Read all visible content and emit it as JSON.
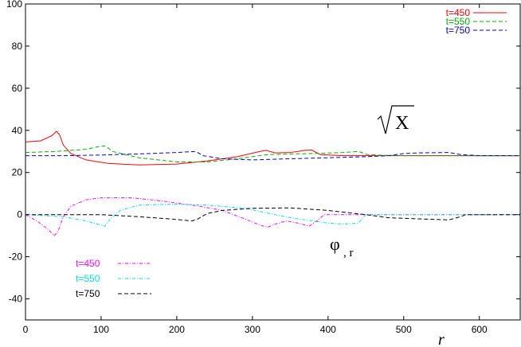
{
  "chart_data": {
    "type": "line",
    "xlabel": "r",
    "ylabel": "",
    "xlim": [
      0,
      654
    ],
    "ylim": [
      -50,
      100
    ],
    "xticks": [
      0,
      100,
      200,
      300,
      400,
      500,
      600
    ],
    "yticks": [
      -40,
      -20,
      0,
      20,
      40,
      60,
      80,
      100
    ],
    "grid": false,
    "annotations": {
      "sqrt_x": "X",
      "phi": "φ",
      "phi_sub": ", r"
    },
    "legends": [
      {
        "group": "sqrtX",
        "position": "top-right",
        "entries": [
          {
            "label": "t=450",
            "color": "#ff0000",
            "dash": "solid"
          },
          {
            "label": "t=550",
            "color": "#00b000",
            "dash": "dash"
          },
          {
            "label": "t=750",
            "color": "#0000d0",
            "dash": "dash"
          }
        ]
      },
      {
        "group": "phi",
        "position": "bottom-left",
        "entries": [
          {
            "label": "t=450",
            "color": "#ff00ff",
            "dash": "dashdot"
          },
          {
            "label": "t=550",
            "color": "#00e0e0",
            "dash": "dashdot"
          },
          {
            "label": "t=750",
            "color": "#000000",
            "dash": "dash"
          }
        ]
      }
    ],
    "series": [
      {
        "name": "t=450",
        "group": "sqrtX",
        "color": "#ff0000",
        "dash": "solid",
        "points": [
          [
            0,
            34.5
          ],
          [
            20,
            35
          ],
          [
            35,
            37.5
          ],
          [
            41,
            39.5
          ],
          [
            45,
            38
          ],
          [
            50,
            33
          ],
          [
            60,
            29
          ],
          [
            80,
            26
          ],
          [
            110,
            24.3
          ],
          [
            150,
            23.6
          ],
          [
            200,
            24
          ],
          [
            240,
            25.5
          ],
          [
            280,
            27.5
          ],
          [
            310,
            30
          ],
          [
            318,
            30.5
          ],
          [
            330,
            29.3
          ],
          [
            350,
            29.5
          ],
          [
            370,
            30.5
          ],
          [
            378,
            30.7
          ],
          [
            390,
            28.5
          ],
          [
            420,
            28
          ],
          [
            480,
            28
          ],
          [
            560,
            28
          ],
          [
            654,
            28
          ]
        ]
      },
      {
        "name": "t=550",
        "group": "sqrtX",
        "color": "#00b000",
        "dash": "dash",
        "points": [
          [
            0,
            29.5
          ],
          [
            40,
            30
          ],
          [
            80,
            31
          ],
          [
            100,
            32.5
          ],
          [
            106,
            32.5
          ],
          [
            115,
            30
          ],
          [
            150,
            27
          ],
          [
            200,
            25
          ],
          [
            240,
            25
          ],
          [
            280,
            26.5
          ],
          [
            320,
            28.5
          ],
          [
            380,
            29
          ],
          [
            420,
            29.5
          ],
          [
            440,
            30
          ],
          [
            452,
            28.5
          ],
          [
            470,
            28.2
          ],
          [
            500,
            28
          ],
          [
            560,
            28
          ],
          [
            654,
            28
          ]
        ]
      },
      {
        "name": "t=750",
        "group": "sqrtX",
        "color": "#0000d0",
        "dash": "dash",
        "points": [
          [
            0,
            28
          ],
          [
            50,
            28
          ],
          [
            100,
            28.3
          ],
          [
            150,
            28.8
          ],
          [
            200,
            29.5
          ],
          [
            225,
            30
          ],
          [
            235,
            28
          ],
          [
            260,
            26.5
          ],
          [
            300,
            26
          ],
          [
            350,
            26.5
          ],
          [
            400,
            27
          ],
          [
            450,
            27.5
          ],
          [
            480,
            28
          ],
          [
            500,
            29
          ],
          [
            520,
            29.3
          ],
          [
            560,
            29.5
          ],
          [
            575,
            28.5
          ],
          [
            600,
            28
          ],
          [
            654,
            28
          ]
        ]
      },
      {
        "name": "t=450",
        "group": "phi",
        "color": "#ff00ff",
        "dash": "dashdot",
        "points": [
          [
            0,
            0
          ],
          [
            15,
            -3
          ],
          [
            30,
            -7
          ],
          [
            38,
            -10
          ],
          [
            43,
            -8
          ],
          [
            50,
            -1
          ],
          [
            60,
            4
          ],
          [
            80,
            7
          ],
          [
            100,
            8
          ],
          [
            140,
            8
          ],
          [
            180,
            6.5
          ],
          [
            230,
            4
          ],
          [
            260,
            2
          ],
          [
            290,
            -2
          ],
          [
            310,
            -5
          ],
          [
            320,
            -6
          ],
          [
            330,
            -4.5
          ],
          [
            345,
            -3
          ],
          [
            360,
            -4
          ],
          [
            375,
            -5.5
          ],
          [
            385,
            -3
          ],
          [
            395,
            0
          ],
          [
            420,
            0
          ],
          [
            440,
            0
          ],
          [
            654,
            0
          ]
        ]
      },
      {
        "name": "t=550",
        "group": "phi",
        "color": "#00e0e0",
        "dash": "dashdot",
        "points": [
          [
            0,
            0
          ],
          [
            50,
            -1
          ],
          [
            80,
            -3
          ],
          [
            100,
            -5
          ],
          [
            105,
            -5.5
          ],
          [
            112,
            -2
          ],
          [
            125,
            2
          ],
          [
            150,
            4.5
          ],
          [
            200,
            5
          ],
          [
            240,
            4.5
          ],
          [
            290,
            3
          ],
          [
            330,
            0
          ],
          [
            360,
            -2
          ],
          [
            380,
            -3
          ],
          [
            400,
            -4
          ],
          [
            420,
            -4.5
          ],
          [
            440,
            -4
          ],
          [
            450,
            0
          ],
          [
            654,
            0
          ]
        ]
      },
      {
        "name": "t=750",
        "group": "phi",
        "color": "#000000",
        "dash": "dash",
        "points": [
          [
            0,
            0
          ],
          [
            100,
            0
          ],
          [
            150,
            -1
          ],
          [
            190,
            -2
          ],
          [
            220,
            -3
          ],
          [
            228,
            -2
          ],
          [
            240,
            0.5
          ],
          [
            260,
            2
          ],
          [
            300,
            3
          ],
          [
            350,
            3.2
          ],
          [
            400,
            2
          ],
          [
            450,
            0
          ],
          [
            480,
            -1.5
          ],
          [
            520,
            -2
          ],
          [
            560,
            -2.5
          ],
          [
            575,
            -1
          ],
          [
            582,
            0
          ],
          [
            654,
            0
          ]
        ]
      }
    ]
  }
}
